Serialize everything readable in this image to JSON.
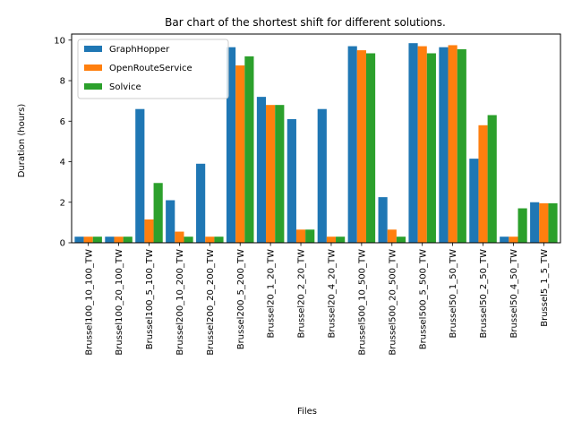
{
  "chart_data": {
    "type": "bar",
    "title": "Bar chart of the shortest shift for different solutions.",
    "xlabel": "Files",
    "ylabel": "Duration (hours)",
    "ylim": [
      0,
      10.3
    ],
    "yticks": [
      0,
      2,
      4,
      6,
      8,
      10
    ],
    "legend_position": "top-left",
    "grid": false,
    "categories": [
      "Brussel100_10_100_TW",
      "Brussel100_20_100_TW",
      "Brussel100_5_100_TW",
      "Brussel200_10_200_TW",
      "Brussel200_20_200_TW",
      "Brussel200_5_200_TW",
      "Brussel20_1_20_TW",
      "Brussel20_2_20_TW",
      "Brussel20_4_20_TW",
      "Brussel500_10_500_TW",
      "Brussel500_20_500_TW",
      "Brussel500_5_500_TW",
      "Brussel50_1_50_TW",
      "Brussel50_2_50_TW",
      "Brussel50_4_50_TW",
      "Brussel5_1_5_TW"
    ],
    "series": [
      {
        "name": "GraphHopper",
        "color": "#1f77b4",
        "values": [
          0.3,
          0.3,
          6.6,
          2.1,
          3.9,
          9.65,
          7.2,
          6.1,
          6.6,
          9.7,
          2.25,
          9.85,
          9.65,
          4.15,
          0.3,
          2.0
        ]
      },
      {
        "name": "OpenRouteService",
        "color": "#ff7f0e",
        "values": [
          0.3,
          0.3,
          1.15,
          0.55,
          0.3,
          8.75,
          6.8,
          0.65,
          0.3,
          9.5,
          0.65,
          9.7,
          9.75,
          5.8,
          0.3,
          1.95
        ]
      },
      {
        "name": "Solvice",
        "color": "#2ca02c",
        "values": [
          0.3,
          0.3,
          2.95,
          0.3,
          0.3,
          9.2,
          6.8,
          0.65,
          0.3,
          9.35,
          0.3,
          9.35,
          9.55,
          6.3,
          1.7,
          1.95
        ]
      }
    ]
  }
}
